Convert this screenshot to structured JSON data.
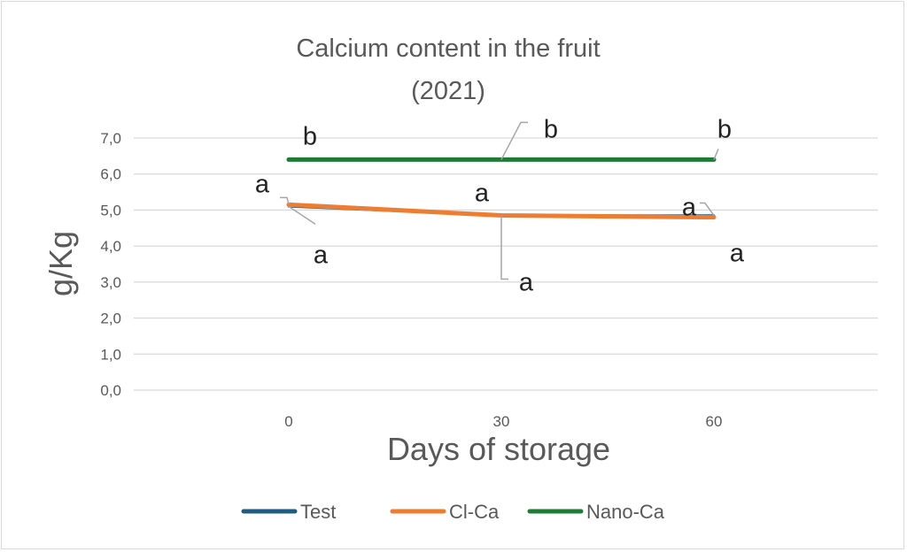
{
  "chart_data": {
    "type": "line",
    "title": [
      "Calcium content in the fruit",
      "(2021)"
    ],
    "xlabel": "Days of storage",
    "ylabel": "g/Kg",
    "categories": [
      "0",
      "30",
      "60"
    ],
    "y_ticks": [
      "0,0",
      "1,0",
      "2,0",
      "3,0",
      "4,0",
      "5,0",
      "6,0",
      "7,0"
    ],
    "ylim": [
      0,
      7
    ],
    "grid": true,
    "legend_position": "bottom",
    "series": [
      {
        "name": "Test",
        "color": "#1f5c82",
        "values": [
          5.1,
          4.85,
          4.85
        ],
        "labels": [
          "a",
          "a",
          "a"
        ]
      },
      {
        "name": "Cl-Ca",
        "color": "#ed7d31",
        "values": [
          5.15,
          4.85,
          4.8
        ],
        "labels": [
          "a",
          "a",
          "a"
        ]
      },
      {
        "name": "Nano-Ca",
        "color": "#1e7b34",
        "values": [
          6.4,
          6.4,
          6.4
        ],
        "labels": [
          "b",
          "b",
          "b"
        ]
      }
    ]
  }
}
